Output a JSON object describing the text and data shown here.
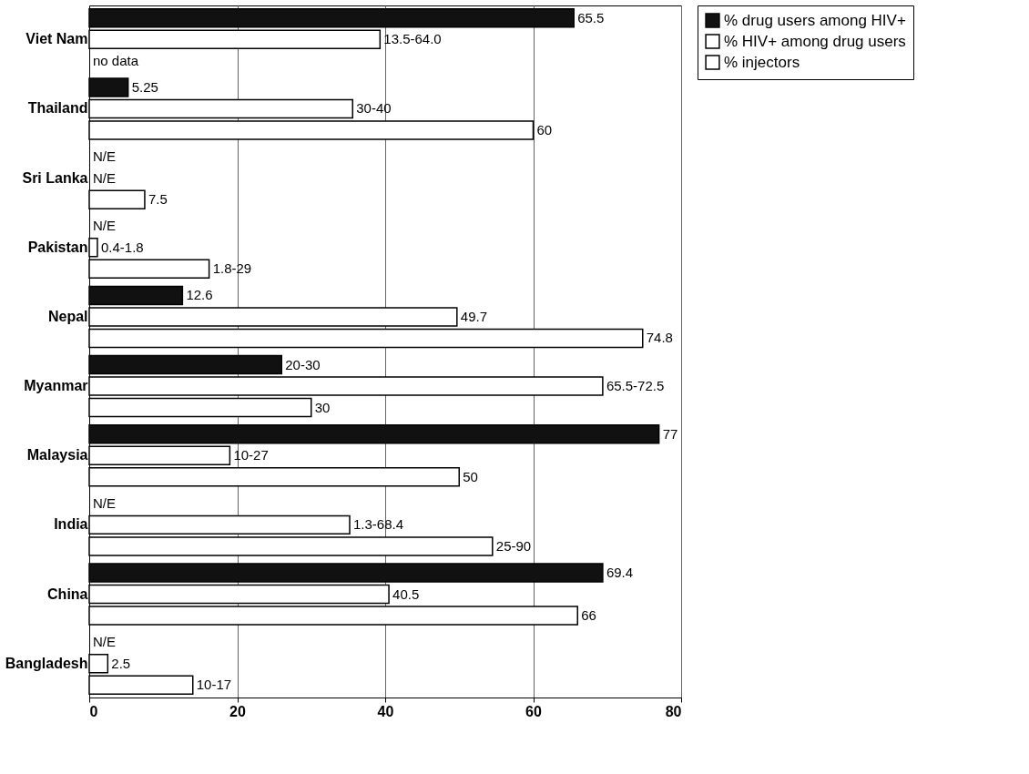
{
  "chart_data": {
    "type": "bar",
    "orientation": "horizontal",
    "categories": [
      "Viet Nam",
      "Thailand",
      "Sri Lanka",
      "Pakistan",
      "Nepal",
      "Myanmar",
      "Malaysia",
      "India",
      "China",
      "Bangladesh"
    ],
    "series": [
      {
        "name": "% drug users among HIV+",
        "color": "#111111",
        "values": [
          65.5,
          5.25,
          null,
          null,
          12.6,
          26,
          77,
          null,
          69.4,
          null
        ],
        "value_labels": [
          "65.5",
          "5.25",
          "N/E",
          "N/E",
          "12.6",
          "20-30",
          "77",
          "N/E",
          "69.4",
          "N/E"
        ]
      },
      {
        "name": "% HIV+ among drug users",
        "color": "#ffffff",
        "values": [
          39.3,
          35.6,
          null,
          1.1,
          49.7,
          69.4,
          19,
          35.2,
          40.5,
          2.5
        ],
        "value_labels": [
          "13.5-64.0",
          "30-40",
          "N/E",
          "0.4-1.8",
          "49.7",
          "65.5-72.5",
          "10-27",
          "1.3-68.4",
          "40.5",
          "2.5"
        ]
      },
      {
        "name": "% injectors",
        "color": "#ffffff",
        "values": [
          null,
          60,
          7.5,
          16.2,
          74.8,
          30,
          50,
          54.5,
          66,
          14
        ],
        "value_labels": [
          "no data",
          "60",
          "7.5",
          "1.8-29",
          "74.8",
          "30",
          "50",
          "25-90",
          "66",
          "10-17"
        ]
      }
    ],
    "xlim": [
      0,
      80
    ],
    "xticks": [
      0,
      20,
      40,
      60,
      80
    ],
    "grid": "x",
    "legend": "top right"
  }
}
